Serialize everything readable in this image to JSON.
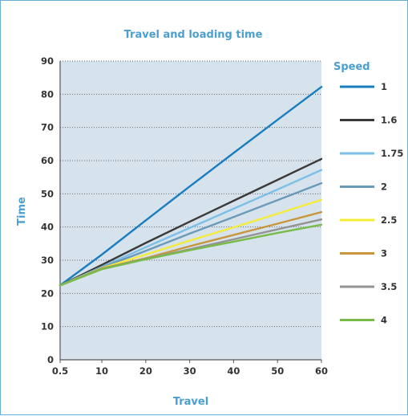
{
  "chart_data": {
    "type": "line",
    "title": "Travel and loading time",
    "xlabel": "Travel",
    "ylabel": "Time",
    "xlim": [
      0.5,
      60
    ],
    "ylim": [
      0,
      90
    ],
    "x_ticks": [
      0.5,
      10,
      20,
      30,
      40,
      50,
      60
    ],
    "y_ticks": [
      0,
      10,
      20,
      30,
      40,
      50,
      60,
      70,
      80,
      90
    ],
    "grid": "horizontal-dotted",
    "plot_background": "#d6e3ec",
    "legend": {
      "title": "Speed",
      "placement": "right"
    },
    "series": [
      {
        "name": "1",
        "color": "#1a7dc0",
        "points": [
          [
            0.5,
            22.4
          ],
          [
            10,
            31.7
          ],
          [
            20,
            42.0
          ],
          [
            30,
            52.2
          ],
          [
            40,
            62.3
          ],
          [
            50,
            72.3
          ],
          [
            60,
            82.2
          ]
        ]
      },
      {
        "name": "1.6",
        "color": "#3a3a3a",
        "points": [
          [
            0.5,
            22.4
          ],
          [
            10,
            28.6
          ],
          [
            20,
            35.2
          ],
          [
            30,
            41.6
          ],
          [
            40,
            47.9
          ],
          [
            50,
            54.2
          ],
          [
            60,
            60.5
          ]
        ]
      },
      {
        "name": "1.75",
        "color": "#7dbfe6",
        "points": [
          [
            0.5,
            22.4
          ],
          [
            10,
            28.0
          ],
          [
            20,
            33.9
          ],
          [
            30,
            39.7
          ],
          [
            40,
            45.5
          ],
          [
            50,
            51.3
          ],
          [
            60,
            57.2
          ]
        ]
      },
      {
        "name": "2",
        "color": "#6a9ab8",
        "points": [
          [
            0.5,
            22.4
          ],
          [
            10,
            27.8
          ],
          [
            20,
            32.8
          ],
          [
            30,
            38.0
          ],
          [
            40,
            43.0
          ],
          [
            50,
            48.1
          ],
          [
            60,
            53.2
          ]
        ]
      },
      {
        "name": "2.5",
        "color": "#f5ec3a",
        "points": [
          [
            0.5,
            22.4
          ],
          [
            10,
            27.6
          ],
          [
            20,
            31.7
          ],
          [
            30,
            35.9
          ],
          [
            40,
            39.9
          ],
          [
            50,
            44.0
          ],
          [
            60,
            48.2
          ]
        ]
      },
      {
        "name": "3",
        "color": "#c8963c",
        "points": [
          [
            0.5,
            22.4
          ],
          [
            10,
            27.5
          ],
          [
            20,
            30.6
          ],
          [
            30,
            34.2
          ],
          [
            40,
            37.6
          ],
          [
            50,
            41.0
          ],
          [
            60,
            44.5
          ]
        ]
      },
      {
        "name": "3.5",
        "color": "#939393",
        "points": [
          [
            0.5,
            22.4
          ],
          [
            10,
            27.4
          ],
          [
            20,
            30.4
          ],
          [
            30,
            33.3
          ],
          [
            40,
            36.3
          ],
          [
            50,
            39.3
          ],
          [
            60,
            42.3
          ]
        ]
      },
      {
        "name": "4",
        "color": "#78bb48",
        "points": [
          [
            0.5,
            22.4
          ],
          [
            10,
            27.3
          ],
          [
            20,
            30.3
          ],
          [
            30,
            33.0
          ],
          [
            40,
            35.6
          ],
          [
            50,
            38.2
          ],
          [
            60,
            40.7
          ]
        ]
      }
    ]
  }
}
